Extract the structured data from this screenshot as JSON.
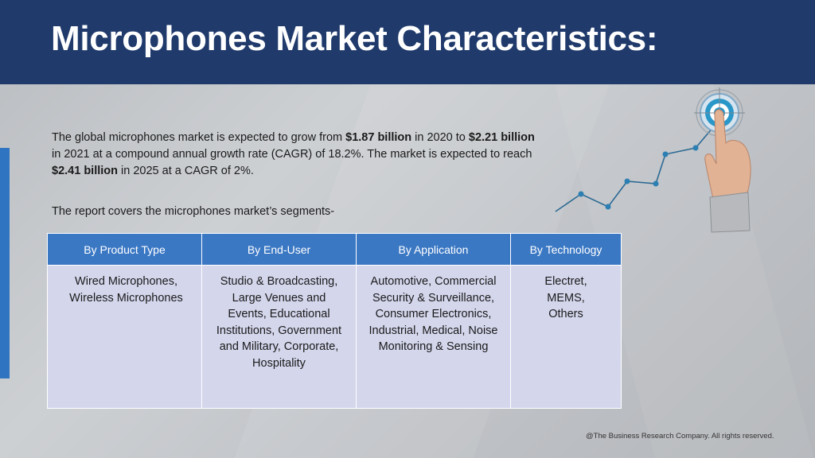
{
  "header": {
    "title": "Microphones Market Characteristics:"
  },
  "intro": {
    "p1_a": "The global microphones market is expected to grow from ",
    "p1_b": "$1.87 billion",
    "p1_c": " in 2020 to ",
    "p1_d": "$2.21 billion",
    "p1_e": " in 2021 at a compound annual growth rate (CAGR) of 18.2%.  The market is expected to reach ",
    "p1_f": "$2.41 billion",
    "p1_g": " in 2025 at a CAGR of 2%."
  },
  "segments_intro": "The report covers the microphones market’s segments-",
  "table": {
    "headers": [
      "By Product Type",
      "By End-User",
      "By Application",
      "By Technology"
    ],
    "cells": [
      "Wired Microphones, Wireless Microphones",
      "Studio & Broadcasting, Large Venues and Events, Educational Institutions, Government and Military, Corporate, Hospitality",
      "Automotive, Commercial Security & Surveillance, Consumer Electronics, Industrial, Medical, Noise Monitoring & Sensing",
      "Electret, MEMS, Others"
    ]
  },
  "footer": "@The Business Research Company. All rights reserved.",
  "colors": {
    "header_bg": "#1f3a6b",
    "table_header_bg": "#3b78c4",
    "table_cell_bg": "#d4d6ec",
    "accent_bar": "#2e74c0",
    "graph_line": "#2c6a94"
  },
  "icons": [
    "growth-line-graphic",
    "target-icon",
    "pointing-hand-icon"
  ]
}
